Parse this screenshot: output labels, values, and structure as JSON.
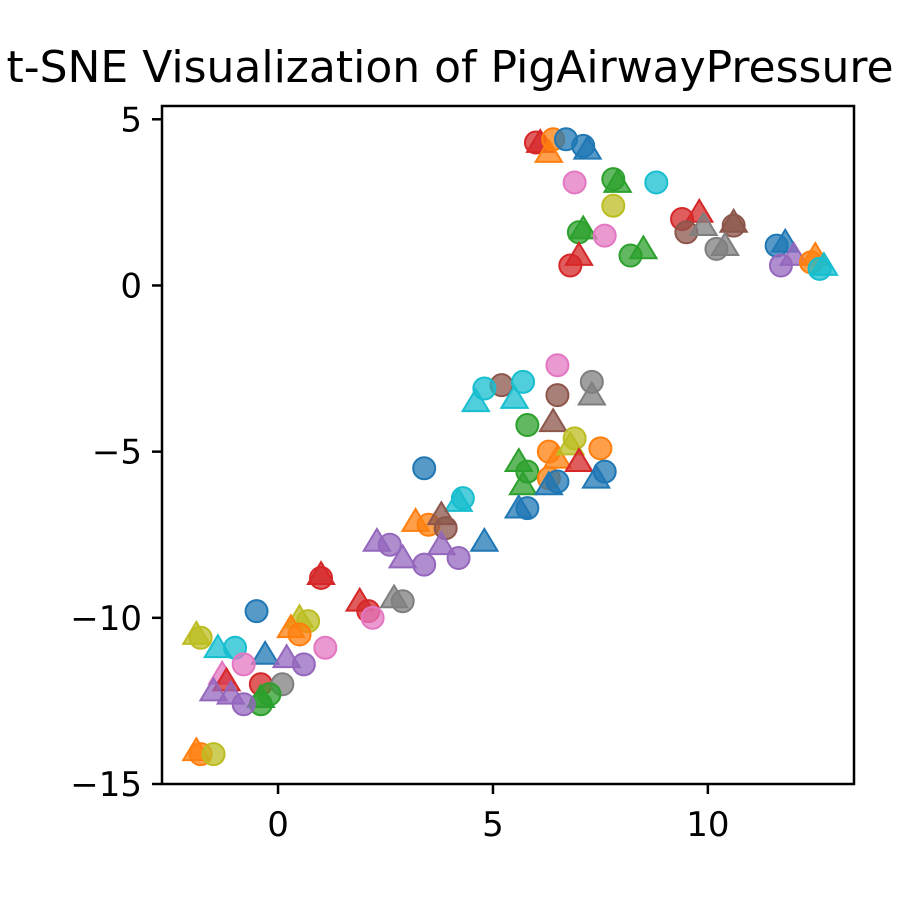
{
  "chart_data": {
    "type": "scatter",
    "title": "t-SNE Visualization of PigAirwayPressure",
    "xlabel": "",
    "ylabel": "",
    "xlim": [
      -2.7,
      13.4
    ],
    "ylim": [
      -15,
      5.4
    ],
    "x_ticks": [
      0,
      5,
      10
    ],
    "x_tick_labels": [
      "0",
      "5",
      "10"
    ],
    "y_ticks": [
      5,
      0,
      -5,
      -10,
      -15
    ],
    "y_tick_labels": [
      "5",
      "0",
      "−5",
      "−10",
      "−15"
    ],
    "grid": false,
    "legend": "none",
    "marker_alpha": 0.75,
    "palette": {
      "blue": "#1f77b4",
      "orange": "#ff7f0e",
      "green": "#2ca02c",
      "red": "#d62728",
      "purple": "#9467bd",
      "brown": "#8c564b",
      "pink": "#e377c2",
      "gray": "#7f7f7f",
      "olive": "#bcbd22",
      "cyan": "#17becf"
    },
    "points": [
      {
        "x": 6.0,
        "y": 4.3,
        "c": "red",
        "m": "circle"
      },
      {
        "x": 6.1,
        "y": 4.3,
        "c": "red",
        "m": "triangle"
      },
      {
        "x": 6.3,
        "y": 4.0,
        "c": "orange",
        "m": "triangle"
      },
      {
        "x": 6.4,
        "y": 4.4,
        "c": "orange",
        "m": "circle"
      },
      {
        "x": 6.7,
        "y": 4.4,
        "c": "blue",
        "m": "circle"
      },
      {
        "x": 7.1,
        "y": 4.2,
        "c": "blue",
        "m": "circle"
      },
      {
        "x": 7.2,
        "y": 4.1,
        "c": "blue",
        "m": "triangle"
      },
      {
        "x": 6.9,
        "y": 3.1,
        "c": "pink",
        "m": "circle"
      },
      {
        "x": 7.8,
        "y": 3.2,
        "c": "green",
        "m": "circle"
      },
      {
        "x": 7.9,
        "y": 3.1,
        "c": "green",
        "m": "triangle"
      },
      {
        "x": 8.8,
        "y": 3.1,
        "c": "cyan",
        "m": "circle"
      },
      {
        "x": 7.8,
        "y": 2.4,
        "c": "olive",
        "m": "circle"
      },
      {
        "x": 7.0,
        "y": 1.6,
        "c": "green",
        "m": "circle"
      },
      {
        "x": 7.1,
        "y": 1.7,
        "c": "green",
        "m": "triangle"
      },
      {
        "x": 7.6,
        "y": 1.5,
        "c": "pink",
        "m": "circle"
      },
      {
        "x": 8.2,
        "y": 0.9,
        "c": "green",
        "m": "circle"
      },
      {
        "x": 8.5,
        "y": 1.1,
        "c": "green",
        "m": "triangle"
      },
      {
        "x": 6.8,
        "y": 0.6,
        "c": "red",
        "m": "circle"
      },
      {
        "x": 7.0,
        "y": 0.9,
        "c": "red",
        "m": "triangle"
      },
      {
        "x": 9.4,
        "y": 2.0,
        "c": "red",
        "m": "circle"
      },
      {
        "x": 9.8,
        "y": 2.2,
        "c": "red",
        "m": "triangle"
      },
      {
        "x": 9.5,
        "y": 1.6,
        "c": "brown",
        "m": "circle"
      },
      {
        "x": 9.9,
        "y": 1.8,
        "c": "gray",
        "m": "triangle"
      },
      {
        "x": 10.6,
        "y": 1.8,
        "c": "brown",
        "m": "circle"
      },
      {
        "x": 10.6,
        "y": 1.9,
        "c": "brown",
        "m": "triangle"
      },
      {
        "x": 10.2,
        "y": 1.1,
        "c": "gray",
        "m": "circle"
      },
      {
        "x": 10.4,
        "y": 1.2,
        "c": "gray",
        "m": "triangle"
      },
      {
        "x": 11.6,
        "y": 1.2,
        "c": "blue",
        "m": "circle"
      },
      {
        "x": 11.8,
        "y": 1.3,
        "c": "blue",
        "m": "triangle"
      },
      {
        "x": 11.7,
        "y": 0.6,
        "c": "purple",
        "m": "circle"
      },
      {
        "x": 12.0,
        "y": 0.9,
        "c": "purple",
        "m": "triangle"
      },
      {
        "x": 12.4,
        "y": 0.7,
        "c": "orange",
        "m": "circle"
      },
      {
        "x": 12.5,
        "y": 0.9,
        "c": "orange",
        "m": "triangle"
      },
      {
        "x": 12.6,
        "y": 0.5,
        "c": "cyan",
        "m": "circle"
      },
      {
        "x": 12.7,
        "y": 0.6,
        "c": "cyan",
        "m": "triangle"
      },
      {
        "x": 6.5,
        "y": -2.4,
        "c": "pink",
        "m": "circle"
      },
      {
        "x": 7.3,
        "y": -2.9,
        "c": "gray",
        "m": "circle"
      },
      {
        "x": 7.3,
        "y": -3.3,
        "c": "gray",
        "m": "triangle"
      },
      {
        "x": 6.5,
        "y": -3.3,
        "c": "brown",
        "m": "circle"
      },
      {
        "x": 5.2,
        "y": -3.0,
        "c": "brown",
        "m": "circle"
      },
      {
        "x": 5.7,
        "y": -2.9,
        "c": "cyan",
        "m": "circle"
      },
      {
        "x": 5.5,
        "y": -3.4,
        "c": "cyan",
        "m": "triangle"
      },
      {
        "x": 4.8,
        "y": -3.1,
        "c": "cyan",
        "m": "circle"
      },
      {
        "x": 4.6,
        "y": -3.5,
        "c": "cyan",
        "m": "triangle"
      },
      {
        "x": 5.8,
        "y": -4.2,
        "c": "green",
        "m": "circle"
      },
      {
        "x": 6.4,
        "y": -4.1,
        "c": "brown",
        "m": "triangle"
      },
      {
        "x": 6.3,
        "y": -5.0,
        "c": "orange",
        "m": "circle"
      },
      {
        "x": 6.5,
        "y": -5.2,
        "c": "orange",
        "m": "triangle"
      },
      {
        "x": 6.9,
        "y": -4.6,
        "c": "olive",
        "m": "circle"
      },
      {
        "x": 6.8,
        "y": -4.8,
        "c": "olive",
        "m": "triangle"
      },
      {
        "x": 7.5,
        "y": -4.9,
        "c": "orange",
        "m": "circle"
      },
      {
        "x": 7.0,
        "y": -5.3,
        "c": "red",
        "m": "triangle"
      },
      {
        "x": 5.6,
        "y": -5.3,
        "c": "green",
        "m": "triangle"
      },
      {
        "x": 5.8,
        "y": -5.6,
        "c": "green",
        "m": "circle"
      },
      {
        "x": 5.7,
        "y": -6.0,
        "c": "green",
        "m": "triangle"
      },
      {
        "x": 6.3,
        "y": -5.8,
        "c": "orange",
        "m": "circle"
      },
      {
        "x": 6.5,
        "y": -5.9,
        "c": "blue",
        "m": "circle"
      },
      {
        "x": 6.3,
        "y": -6.0,
        "c": "blue",
        "m": "triangle"
      },
      {
        "x": 7.6,
        "y": -5.6,
        "c": "blue",
        "m": "circle"
      },
      {
        "x": 7.4,
        "y": -5.8,
        "c": "blue",
        "m": "triangle"
      },
      {
        "x": 5.8,
        "y": -6.7,
        "c": "blue",
        "m": "circle"
      },
      {
        "x": 5.6,
        "y": -6.7,
        "c": "blue",
        "m": "triangle"
      },
      {
        "x": 3.4,
        "y": -5.5,
        "c": "blue",
        "m": "circle"
      },
      {
        "x": 4.3,
        "y": -6.4,
        "c": "cyan",
        "m": "circle"
      },
      {
        "x": 4.2,
        "y": -6.5,
        "c": "cyan",
        "m": "triangle"
      },
      {
        "x": 3.2,
        "y": -7.1,
        "c": "orange",
        "m": "triangle"
      },
      {
        "x": 3.5,
        "y": -7.2,
        "c": "orange",
        "m": "circle"
      },
      {
        "x": 3.8,
        "y": -6.9,
        "c": "brown",
        "m": "triangle"
      },
      {
        "x": 3.9,
        "y": -7.3,
        "c": "brown",
        "m": "circle"
      },
      {
        "x": 4.8,
        "y": -7.7,
        "c": "blue",
        "m": "triangle"
      },
      {
        "x": 2.3,
        "y": -7.7,
        "c": "purple",
        "m": "triangle"
      },
      {
        "x": 2.6,
        "y": -7.8,
        "c": "purple",
        "m": "circle"
      },
      {
        "x": 3.8,
        "y": -7.8,
        "c": "purple",
        "m": "triangle"
      },
      {
        "x": 2.9,
        "y": -8.2,
        "c": "purple",
        "m": "triangle"
      },
      {
        "x": 3.4,
        "y": -8.4,
        "c": "purple",
        "m": "circle"
      },
      {
        "x": 4.2,
        "y": -8.2,
        "c": "purple",
        "m": "circle"
      },
      {
        "x": 1.0,
        "y": -8.7,
        "c": "red",
        "m": "triangle"
      },
      {
        "x": 1.0,
        "y": -8.8,
        "c": "red",
        "m": "circle"
      },
      {
        "x": 1.9,
        "y": -9.5,
        "c": "red",
        "m": "triangle"
      },
      {
        "x": 2.1,
        "y": -9.8,
        "c": "red",
        "m": "circle"
      },
      {
        "x": 2.7,
        "y": -9.4,
        "c": "gray",
        "m": "triangle"
      },
      {
        "x": 2.9,
        "y": -9.5,
        "c": "gray",
        "m": "circle"
      },
      {
        "x": 2.2,
        "y": -10.0,
        "c": "pink",
        "m": "circle"
      },
      {
        "x": 0.5,
        "y": -10.0,
        "c": "olive",
        "m": "triangle"
      },
      {
        "x": 0.7,
        "y": -10.1,
        "c": "olive",
        "m": "circle"
      },
      {
        "x": 0.3,
        "y": -10.3,
        "c": "orange",
        "m": "triangle"
      },
      {
        "x": 0.5,
        "y": -10.5,
        "c": "orange",
        "m": "circle"
      },
      {
        "x": -0.5,
        "y": -9.8,
        "c": "blue",
        "m": "circle"
      },
      {
        "x": -1.9,
        "y": -10.5,
        "c": "olive",
        "m": "triangle"
      },
      {
        "x": -1.8,
        "y": -10.6,
        "c": "olive",
        "m": "circle"
      },
      {
        "x": -1.4,
        "y": -10.9,
        "c": "cyan",
        "m": "triangle"
      },
      {
        "x": -1.0,
        "y": -10.9,
        "c": "cyan",
        "m": "circle"
      },
      {
        "x": -0.3,
        "y": -11.1,
        "c": "blue",
        "m": "triangle"
      },
      {
        "x": 1.1,
        "y": -10.9,
        "c": "pink",
        "m": "circle"
      },
      {
        "x": 0.2,
        "y": -11.2,
        "c": "purple",
        "m": "triangle"
      },
      {
        "x": 0.6,
        "y": -11.4,
        "c": "purple",
        "m": "circle"
      },
      {
        "x": -0.8,
        "y": -11.4,
        "c": "pink",
        "m": "circle"
      },
      {
        "x": -1.3,
        "y": -11.7,
        "c": "pink",
        "m": "triangle"
      },
      {
        "x": -1.2,
        "y": -11.9,
        "c": "red",
        "m": "triangle"
      },
      {
        "x": -0.4,
        "y": -12.0,
        "c": "red",
        "m": "circle"
      },
      {
        "x": 0.1,
        "y": -12.0,
        "c": "gray",
        "m": "circle"
      },
      {
        "x": -1.5,
        "y": -12.2,
        "c": "purple",
        "m": "triangle"
      },
      {
        "x": -1.1,
        "y": -12.3,
        "c": "purple",
        "m": "triangle"
      },
      {
        "x": -0.4,
        "y": -12.4,
        "c": "green",
        "m": "triangle"
      },
      {
        "x": -0.2,
        "y": -12.3,
        "c": "green",
        "m": "circle"
      },
      {
        "x": -0.4,
        "y": -12.6,
        "c": "green",
        "m": "circle"
      },
      {
        "x": -0.8,
        "y": -12.6,
        "c": "purple",
        "m": "circle"
      },
      {
        "x": -1.9,
        "y": -14.0,
        "c": "orange",
        "m": "triangle"
      },
      {
        "x": -1.8,
        "y": -14.1,
        "c": "orange",
        "m": "circle"
      },
      {
        "x": -1.5,
        "y": -14.1,
        "c": "olive",
        "m": "circle"
      }
    ]
  }
}
